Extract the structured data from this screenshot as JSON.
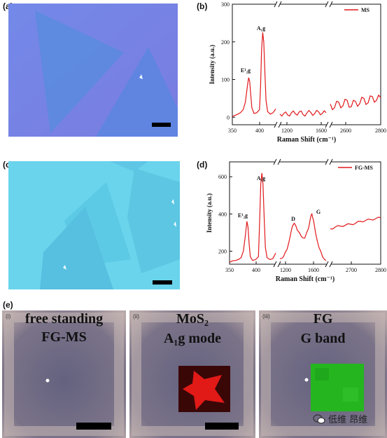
{
  "panels": {
    "a": "(a)",
    "b": "(b)",
    "c": "(c)",
    "d": "(d)",
    "e": "(e)"
  },
  "chart_data": [
    {
      "panel": "b",
      "type": "line",
      "xlabel": "Raman Shift (cm⁻¹)",
      "ylabel": "Intensity (a.u.)",
      "legend": "MS",
      "legend_position": "top-right",
      "xtick_labels": [
        "350",
        "400",
        "1200",
        "1600",
        "2600",
        "2800"
      ],
      "yticks": [
        "0",
        "100",
        "200",
        "300"
      ],
      "ylim": [
        -20,
        300
      ],
      "peak_labels": [
        "E¹₂g",
        "A₁g"
      ],
      "segments": [
        {
          "range": [
            350,
            430
          ],
          "x": [
            350,
            355,
            360,
            365,
            370,
            374,
            378,
            380,
            382,
            384,
            386,
            390,
            395,
            400,
            402,
            404,
            406,
            408,
            410,
            412,
            415,
            420,
            425,
            430
          ],
          "y": [
            2,
            5,
            8,
            12,
            20,
            40,
            85,
            105,
            95,
            60,
            25,
            10,
            12,
            20,
            80,
            180,
            225,
            200,
            120,
            45,
            15,
            8,
            12,
            22
          ]
        },
        {
          "range": [
            1100,
            1700
          ],
          "x": [
            1100,
            1150,
            1200,
            1250,
            1300,
            1350,
            1400,
            1450,
            1500,
            1550,
            1600,
            1650,
            1700
          ],
          "y": [
            8,
            10,
            6,
            12,
            9,
            14,
            7,
            11,
            13,
            9,
            15,
            10,
            12
          ]
        },
        {
          "range": [
            2500,
            2800
          ],
          "x": [
            2500,
            2525,
            2550,
            2575,
            2600,
            2625,
            2650,
            2675,
            2700,
            2725,
            2750,
            2775,
            2800
          ],
          "y": [
            35,
            25,
            40,
            30,
            45,
            28,
            42,
            36,
            50,
            38,
            55,
            45,
            52
          ]
        }
      ],
      "color": "#e0191c"
    },
    {
      "panel": "d",
      "type": "line",
      "xlabel": "Raman Shift (cm⁻¹)",
      "ylabel": "Intensity (a.u.)",
      "legend": "FG-MS",
      "legend_position": "top-right",
      "xtick_labels": [
        "350",
        "400",
        "1200",
        "1600",
        "2700",
        "2800"
      ],
      "yticks": [
        "200",
        "400",
        "600"
      ],
      "ylim": [
        130,
        680
      ],
      "peak_labels": [
        "E¹₂g",
        "A₁g",
        "D",
        "G"
      ],
      "segments": [
        {
          "range": [
            350,
            430
          ],
          "x": [
            350,
            355,
            360,
            365,
            370,
            374,
            378,
            380,
            382,
            384,
            386,
            390,
            395,
            400,
            402,
            404,
            406,
            408,
            410,
            412,
            415,
            420,
            425,
            430
          ],
          "y": [
            140,
            148,
            150,
            155,
            165,
            200,
            300,
            360,
            330,
            240,
            170,
            150,
            155,
            170,
            350,
            560,
            620,
            560,
            380,
            220,
            165,
            155,
            160,
            190
          ]
        },
        {
          "range": [
            1150,
            1800
          ],
          "x": [
            1150,
            1200,
            1250,
            1300,
            1330,
            1350,
            1380,
            1400,
            1450,
            1500,
            1550,
            1580,
            1600,
            1620,
            1650,
            1700,
            1750,
            1800
          ],
          "y": [
            160,
            170,
            210,
            290,
            340,
            350,
            330,
            310,
            280,
            270,
            320,
            380,
            400,
            370,
            300,
            220,
            170,
            150
          ]
        },
        {
          "range": [
            2550,
            2800
          ],
          "x": [
            2550,
            2575,
            2600,
            2625,
            2650,
            2675,
            2700,
            2725,
            2750,
            2775,
            2800
          ],
          "y": [
            320,
            330,
            335,
            340,
            345,
            350,
            360,
            365,
            370,
            375,
            380
          ]
        }
      ],
      "color": "#e0191c"
    }
  ],
  "tiles": [
    {
      "sub": "(i)",
      "line1": "free standing",
      "line2": "FG-MS"
    },
    {
      "sub": "(ii)",
      "line1": "MoS₂",
      "line2": "A₁g mode"
    },
    {
      "sub": "(iii)",
      "line1": "FG",
      "line2": "G band"
    }
  ],
  "watermark": {
    "text": "低维 昂维",
    "icon": "wechat-icon"
  }
}
